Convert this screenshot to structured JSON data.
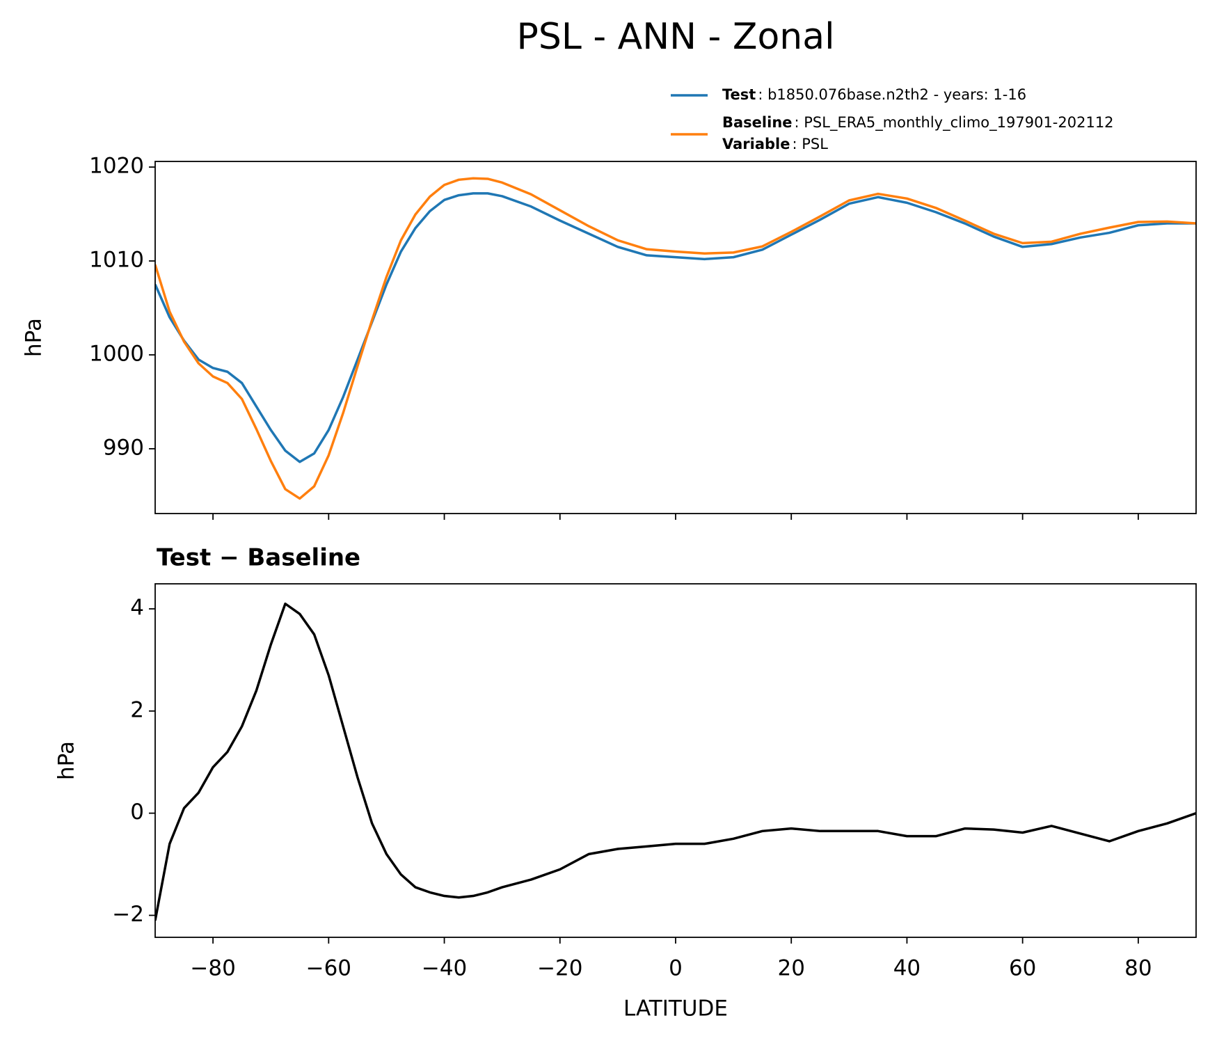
{
  "chart_data": [
    {
      "type": "line",
      "title": "PSL - ANN - Zonal",
      "ylabel": "hPa",
      "x": [
        -90,
        -87.5,
        -85,
        -82.5,
        -80,
        -77.5,
        -75,
        -72.5,
        -70,
        -67.5,
        -65,
        -62.5,
        -60,
        -57.5,
        -55,
        -52.5,
        -50,
        -47.5,
        -45,
        -42.5,
        -40,
        -37.5,
        -35,
        -32.5,
        -30,
        -25,
        -20,
        -15,
        -10,
        -5,
        0,
        5,
        10,
        15,
        20,
        25,
        30,
        35,
        40,
        45,
        50,
        55,
        60,
        65,
        70,
        75,
        80,
        85,
        90
      ],
      "series": [
        {
          "name": "Test",
          "description": ": b1850.076base.n2th2 - years: 1-16",
          "color": "#1f77b4",
          "values": [
            1007.5,
            1004,
            1001.5,
            999.5,
            998.6,
            998.2,
            997,
            994.5,
            992,
            989.8,
            988.6,
            989.5,
            992,
            995.5,
            999.5,
            1003.5,
            1007.5,
            1011,
            1013.5,
            1015.3,
            1016.5,
            1017,
            1017.2,
            1017.2,
            1016.9,
            1015.8,
            1014.3,
            1012.9,
            1011.5,
            1010.6,
            1010.4,
            1010.2,
            1010.4,
            1011.2,
            1012.8,
            1014.4,
            1016.1,
            1016.8,
            1016.2,
            1015.2,
            1014,
            1012.6,
            1011.5,
            1011.8,
            1012.5,
            1013,
            1013.8,
            1014,
            1014
          ]
        },
        {
          "name": "Baseline",
          "description": ": PSL_ERA5_monthly_climo_197901-202112",
          "color": "#ff7f0e",
          "values": [
            1009.6,
            1004.6,
            1001.4,
            999.1,
            997.7,
            997,
            995.3,
            992.1,
            988.7,
            985.7,
            984.7,
            986,
            989.3,
            993.8,
            998.8,
            1003.7,
            1008.3,
            1012.2,
            1014.95,
            1016.85,
            1018.1,
            1018.65,
            1018.8,
            1018.75,
            1018.35,
            1017.1,
            1015.4,
            1013.7,
            1012.2,
            1011.25,
            1011,
            1010.8,
            1010.9,
            1011.55,
            1013.1,
            1014.75,
            1016.45,
            1017.15,
            1016.65,
            1015.65,
            1014.3,
            1012.9,
            1011.9,
            1012.05,
            1012.9,
            1013.55,
            1014.15,
            1014.2,
            1014
          ]
        }
      ],
      "legend_note": {
        "name": "Variable",
        "description": ": PSL"
      },
      "xlim": [
        -90,
        90
      ],
      "xticks": [
        -80,
        -60,
        -40,
        -20,
        0,
        20,
        40,
        60,
        80
      ],
      "ylim": [
        983.1,
        1020.6
      ],
      "yticks": [
        990,
        1000,
        1010,
        1020
      ]
    },
    {
      "type": "line",
      "title": "Test − Baseline",
      "ylabel": "hPa",
      "xlabel": "LATITUDE",
      "x": [
        -90,
        -87.5,
        -85,
        -82.5,
        -80,
        -77.5,
        -75,
        -72.5,
        -70,
        -67.5,
        -65,
        -62.5,
        -60,
        -57.5,
        -55,
        -52.5,
        -50,
        -47.5,
        -45,
        -42.5,
        -40,
        -37.5,
        -35,
        -32.5,
        -30,
        -25,
        -20,
        -15,
        -10,
        -5,
        0,
        5,
        10,
        15,
        20,
        25,
        30,
        35,
        40,
        45,
        50,
        55,
        60,
        65,
        70,
        75,
        80,
        85,
        90
      ],
      "series": [
        {
          "color": "#000000",
          "values": [
            -2.1,
            -0.6,
            0.1,
            0.4,
            0.9,
            1.2,
            1.7,
            2.4,
            3.3,
            4.1,
            3.9,
            3.5,
            2.7,
            1.7,
            0.7,
            -0.2,
            -0.8,
            -1.2,
            -1.45,
            -1.55,
            -1.62,
            -1.65,
            -1.62,
            -1.55,
            -1.45,
            -1.3,
            -1.1,
            -0.8,
            -0.7,
            -0.65,
            -0.6,
            -0.6,
            -0.5,
            -0.35,
            -0.3,
            -0.35,
            -0.35,
            -0.35,
            -0.45,
            -0.45,
            -0.3,
            -0.32,
            -0.38,
            -0.25,
            -0.4,
            -0.55,
            -0.35,
            -0.2,
            0
          ]
        }
      ],
      "xlim": [
        -90,
        90
      ],
      "xticks": [
        {
          "value": -80,
          "label": "−80"
        },
        {
          "value": -60,
          "label": "−60"
        },
        {
          "value": -40,
          "label": "−40"
        },
        {
          "value": -20,
          "label": "−20"
        },
        0,
        20,
        40,
        60,
        80
      ],
      "ylim": [
        -2.43,
        4.49
      ],
      "yticks": [
        {
          "value": -2,
          "label": "−2"
        },
        0,
        2,
        4
      ]
    }
  ]
}
